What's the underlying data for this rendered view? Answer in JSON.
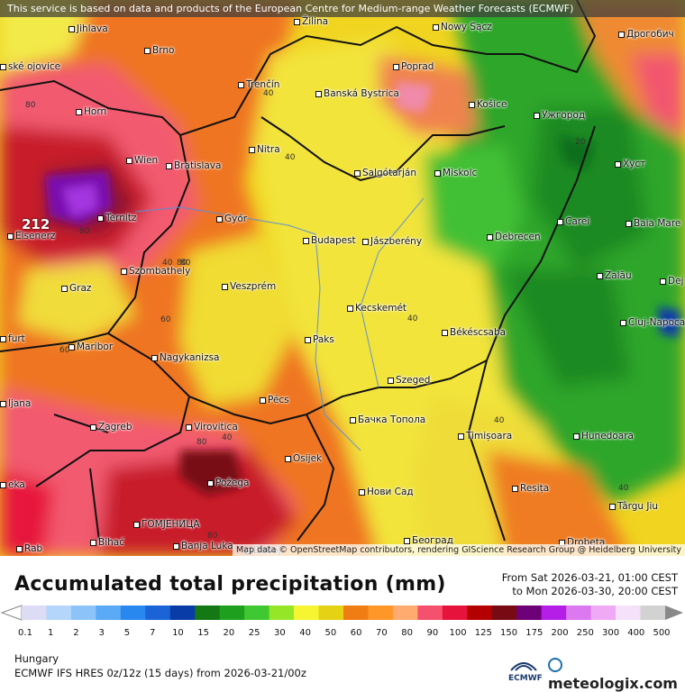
{
  "banner": "This service is based on data and products of the European Centre for Medium-range Weather Forecasts (ECMWF)",
  "attribution": "Map data © OpenStreetMap contributors, rendering GIScience Research Group @ Heidelberg University",
  "title": "Accumulated total precipitation (mm)",
  "period_from": "From Sat 2026-03-21, 01:00 CEST",
  "period_to": "to Mon 2026-03-30, 20:00 CEST",
  "region": "Hungary",
  "model": "ECMWF IFS HRES 0z/12z (15 days) from  2026-03-21/00z",
  "ecmwf_logo": "ECMWF",
  "brand": "meteologix.com",
  "max_value": "212",
  "colors": {
    "low": "#f3e96a",
    "green": "#26a626",
    "orange": "#ee7020",
    "red": "#c81e2a",
    "purple": "#8c1fc0"
  },
  "legend": {
    "ticks": [
      "0.1",
      "1",
      "2",
      "3",
      "5",
      "7",
      "10",
      "15",
      "20",
      "25",
      "30",
      "40",
      "50",
      "60",
      "70",
      "80",
      "90",
      "100",
      "125",
      "150",
      "175",
      "200",
      "250",
      "300",
      "400",
      "500"
    ],
    "colors": [
      "#dcdcf5",
      "#b4d6fa",
      "#8cc4fa",
      "#5aaaf5",
      "#2888f0",
      "#1a64d8",
      "#0a3ca8",
      "#147814",
      "#1ea01e",
      "#40c832",
      "#96e628",
      "#f5f532",
      "#e6d214",
      "#f07d14",
      "#ff9628",
      "#ffaa6e",
      "#f5506e",
      "#e6143c",
      "#b40000",
      "#780a14",
      "#6e0078",
      "#b41ee6",
      "#dc78f0",
      "#f0aaf5",
      "#f5e1fa",
      "#d2d2d2"
    ]
  },
  "cities": [
    {
      "name": "Jihlava"
    },
    {
      "name": "Brno"
    },
    {
      "name": "Žilina"
    },
    {
      "name": "Poprad"
    },
    {
      "name": "Дрогобич"
    },
    {
      "name": "Horn"
    },
    {
      "name": "Trenčín"
    },
    {
      "name": "Banská Bystrica"
    },
    {
      "name": "Košice"
    },
    {
      "name": "Ужгород"
    },
    {
      "name": "Wien"
    },
    {
      "name": "Bratislava"
    },
    {
      "name": "Nitra"
    },
    {
      "name": "Salgótarján"
    },
    {
      "name": "Miskolc"
    },
    {
      "name": "Хуст"
    },
    {
      "name": "Ternitz"
    },
    {
      "name": "Győr"
    },
    {
      "name": "Budapest"
    },
    {
      "name": "Jászberény"
    },
    {
      "name": "Debrecen"
    },
    {
      "name": "Carei"
    },
    {
      "name": "Baia Mare"
    },
    {
      "name": "Eisenerz"
    },
    {
      "name": "Szombathely"
    },
    {
      "name": "Graz"
    },
    {
      "name": "Veszprém"
    },
    {
      "name": "Zalău"
    },
    {
      "name": "Dej"
    },
    {
      "name": "Kecskemét"
    },
    {
      "name": "Cluj-Napoca"
    },
    {
      "name": "Maribor"
    },
    {
      "name": "Paks"
    },
    {
      "name": "Békéscsaba"
    },
    {
      "name": "Nagykanizsa"
    },
    {
      "name": "Pécs"
    },
    {
      "name": "Szeged"
    },
    {
      "name": "Zagreb"
    },
    {
      "name": "Virovitica"
    },
    {
      "name": "Бачка Топола"
    },
    {
      "name": "Timișoara"
    },
    {
      "name": "Hunedoara"
    },
    {
      "name": "Osijek"
    },
    {
      "name": "Požega"
    },
    {
      "name": "Нови Сад"
    },
    {
      "name": "Reșița"
    },
    {
      "name": "Târgu Jiu"
    },
    {
      "name": "ГОМЈЕНИЦА"
    },
    {
      "name": "Bihać"
    },
    {
      "name": "Banja Luka"
    },
    {
      "name": "Doboj"
    },
    {
      "name": "Београд"
    },
    {
      "name": "Drobeta"
    },
    {
      "name": "ljana"
    },
    {
      "name": "furt"
    },
    {
      "name": "Rab"
    },
    {
      "name": "eka"
    },
    {
      "name": "ské ojovice"
    },
    {
      "name": "Nowy Sącz"
    }
  ],
  "contours": [
    "80",
    "80",
    "80",
    "60",
    "40",
    "40",
    "20",
    "80",
    "60",
    "40",
    "40",
    "40",
    "40",
    "40",
    "80",
    "80"
  ]
}
